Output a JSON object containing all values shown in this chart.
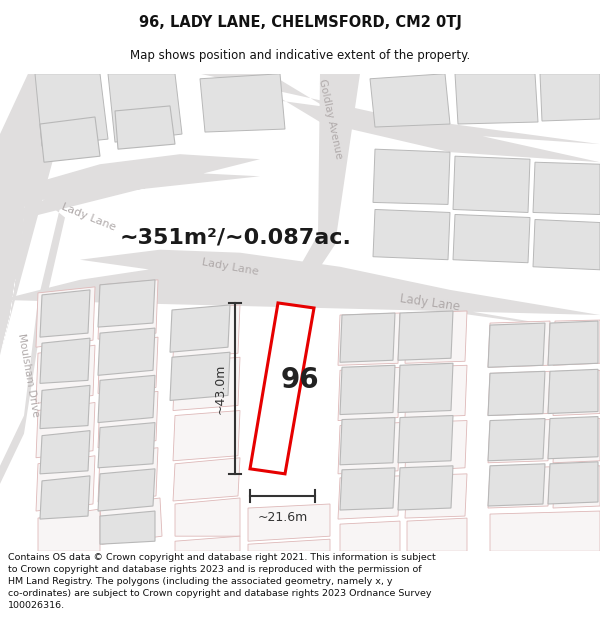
{
  "title_line1": "96, LADY LANE, CHELMSFORD, CM2 0TJ",
  "title_line2": "Map shows position and indicative extent of the property.",
  "area_text": "~351m²/~0.087ac.",
  "number_label": "96",
  "dim_vertical": "~43.0m",
  "dim_horizontal": "~21.6m",
  "footer_text": "Contains OS data © Crown copyright and database right 2021. This information is subject to Crown copyright and database rights 2023 and is reproduced with the permission of HM Land Registry. The polygons (including the associated geometry, namely x, y co-ordinates) are subject to Crown copyright and database rights 2023 Ordnance Survey 100026316.",
  "bg_color": "#f7f7f7",
  "road_fill": "#e0dede",
  "road_center": "#d0cccc",
  "building_fill_gray": "#e2e2e2",
  "building_edge_gray": "#b8b8b8",
  "building_fill_pink": "#f5f0f0",
  "building_edge_pink": "#e8b0b0",
  "road_label_color": "#b0aaaa",
  "highlight_red": "#e60000",
  "dim_line_color": "#333333",
  "area_text_color": "#1a1a1a",
  "number_color": "#222222"
}
